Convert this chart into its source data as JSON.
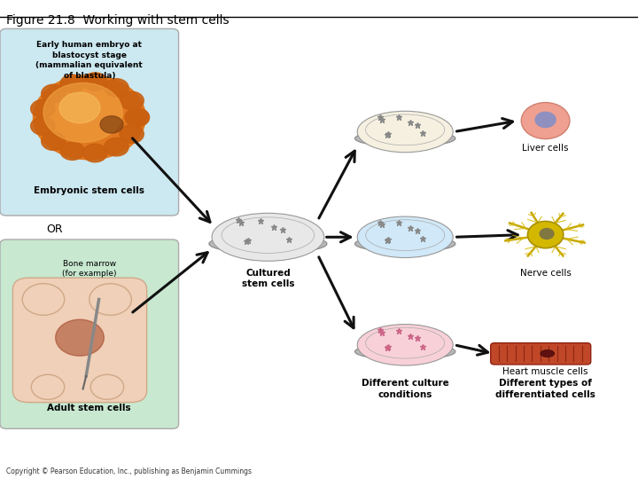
{
  "title": "Figure 21.8  Working with stem cells",
  "bg_color": "#ffffff",
  "embryo_box_color": "#cce8f0",
  "bone_box_color": "#c8e8d0",
  "labels": {
    "title_box1": "Early human embryo at\nblastocyst stage\n(mammalian equivalent\nof blastula)",
    "label_embryo": "Embryonic stem cells",
    "label_or": "OR",
    "label_bone": "Bone marrow\n(for example)",
    "label_adult": "Adult stem cells",
    "label_cultured": "Cultured\nstem cells",
    "label_liver": "Liver cells",
    "label_nerve": "Nerve cells",
    "label_heart": "Heart muscle cells",
    "label_diff_culture": "Different culture\nconditions",
    "label_diff_types": "Different types of\ndifferentiated cells",
    "copyright": "Copyright © Pearson Education, Inc., publishing as Benjamin Cummings"
  },
  "arrow_color": "#111111",
  "petri_center_color": "#e8e8e8",
  "petri_top_color": "#f5f0e0",
  "petri_mid_color": "#d0e8f8",
  "petri_bot_color": "#f8d0d8",
  "dot_color_center": "#888888",
  "dot_color_top": "#888888",
  "dot_color_mid": "#888888",
  "dot_color_bot": "#cc6688"
}
